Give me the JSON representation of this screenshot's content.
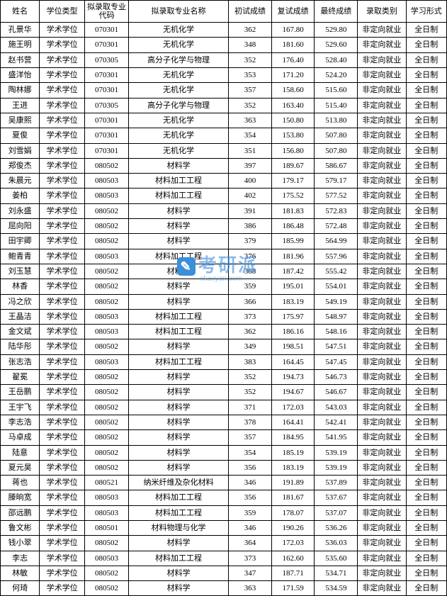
{
  "watermark": {
    "text": "考研派",
    "sub": "okaoyan.com"
  },
  "columns": [
    "姓名",
    "学位类型",
    "拟录取专业\n代码",
    "拟录取专业名称",
    "初试成绩",
    "复试成绩",
    "最终成绩",
    "录取类别",
    "学习形式"
  ],
  "rows": [
    [
      "孔景华",
      "学术学位",
      "070301",
      "无机化学",
      "362",
      "167.80",
      "529.80",
      "非定向就业",
      "全日制"
    ],
    [
      "施王明",
      "学术学位",
      "070301",
      "无机化学",
      "348",
      "181.60",
      "529.60",
      "非定向就业",
      "全日制"
    ],
    [
      "赵书营",
      "学术学位",
      "070305",
      "高分子化学与物理",
      "352",
      "176.40",
      "528.40",
      "非定向就业",
      "全日制"
    ],
    [
      "盛洋怡",
      "学术学位",
      "070301",
      "无机化学",
      "353",
      "171.20",
      "524.20",
      "非定向就业",
      "全日制"
    ],
    [
      "陶林娜",
      "学术学位",
      "070301",
      "无机化学",
      "357",
      "158.60",
      "515.60",
      "非定向就业",
      "全日制"
    ],
    [
      "王进",
      "学术学位",
      "070305",
      "高分子化学与物理",
      "352",
      "163.40",
      "515.40",
      "非定向就业",
      "全日制"
    ],
    [
      "吴康熙",
      "学术学位",
      "070301",
      "无机化学",
      "363",
      "150.80",
      "513.80",
      "非定向就业",
      "全日制"
    ],
    [
      "夏俊",
      "学术学位",
      "070301",
      "无机化学",
      "354",
      "153.80",
      "507.80",
      "非定向就业",
      "全日制"
    ],
    [
      "刘雪娟",
      "学术学位",
      "070301",
      "无机化学",
      "351",
      "156.80",
      "507.80",
      "非定向就业",
      "全日制"
    ],
    [
      "郑俊杰",
      "学术学位",
      "080502",
      "材料学",
      "397",
      "189.67",
      "586.67",
      "非定向就业",
      "全日制"
    ],
    [
      "朱晨元",
      "学术学位",
      "080503",
      "材料加工工程",
      "400",
      "179.17",
      "579.17",
      "非定向就业",
      "全日制"
    ],
    [
      "姜柏",
      "学术学位",
      "080503",
      "材料加工工程",
      "402",
      "175.52",
      "577.52",
      "非定向就业",
      "全日制"
    ],
    [
      "刘永盛",
      "学术学位",
      "080502",
      "材料学",
      "391",
      "181.83",
      "572.83",
      "非定向就业",
      "全日制"
    ],
    [
      "屈向阳",
      "学术学位",
      "080502",
      "材料学",
      "386",
      "186.48",
      "572.48",
      "非定向就业",
      "全日制"
    ],
    [
      "田宇卿",
      "学术学位",
      "080502",
      "材料学",
      "379",
      "185.99",
      "564.99",
      "非定向就业",
      "全日制"
    ],
    [
      "鲍青青",
      "学术学位",
      "080503",
      "材料加工工程",
      "376",
      "181.96",
      "557.96",
      "非定向就业",
      "全日制"
    ],
    [
      "刘玉慧",
      "学术学位",
      "080502",
      "材料学",
      "368",
      "187.42",
      "555.42",
      "非定向就业",
      "全日制"
    ],
    [
      "林香",
      "学术学位",
      "080502",
      "材料学",
      "359",
      "195.01",
      "554.01",
      "非定向就业",
      "全日制"
    ],
    [
      "冯之欣",
      "学术学位",
      "080502",
      "材料学",
      "366",
      "183.19",
      "549.19",
      "非定向就业",
      "全日制"
    ],
    [
      "王晶洁",
      "学术学位",
      "080503",
      "材料加工工程",
      "373",
      "175.97",
      "548.97",
      "非定向就业",
      "全日制"
    ],
    [
      "金文斌",
      "学术学位",
      "080503",
      "材料加工工程",
      "362",
      "186.16",
      "548.16",
      "非定向就业",
      "全日制"
    ],
    [
      "陆华彤",
      "学术学位",
      "080502",
      "材料学",
      "349",
      "198.51",
      "547.51",
      "非定向就业",
      "全日制"
    ],
    [
      "张志浩",
      "学术学位",
      "080503",
      "材料加工工程",
      "383",
      "164.45",
      "547.45",
      "非定向就业",
      "全日制"
    ],
    [
      "翟冕",
      "学术学位",
      "080502",
      "材料学",
      "352",
      "194.73",
      "546.73",
      "非定向就业",
      "全日制"
    ],
    [
      "王岳鹏",
      "学术学位",
      "080502",
      "材料学",
      "352",
      "194.67",
      "546.67",
      "非定向就业",
      "全日制"
    ],
    [
      "王宇飞",
      "学术学位",
      "080502",
      "材料学",
      "371",
      "172.03",
      "543.03",
      "非定向就业",
      "全日制"
    ],
    [
      "李志浩",
      "学术学位",
      "080502",
      "材料学",
      "378",
      "164.41",
      "542.41",
      "非定向就业",
      "全日制"
    ],
    [
      "马卓成",
      "学术学位",
      "080502",
      "材料学",
      "357",
      "184.95",
      "541.95",
      "非定向就业",
      "全日制"
    ],
    [
      "陆意",
      "学术学位",
      "080502",
      "材料学",
      "354",
      "185.19",
      "539.19",
      "非定向就业",
      "全日制"
    ],
    [
      "夏元昊",
      "学术学位",
      "080502",
      "材料学",
      "356",
      "183.19",
      "539.19",
      "非定向就业",
      "全日制"
    ],
    [
      "蒋也",
      "学术学位",
      "080521",
      "纳米纤维及杂化材料",
      "346",
      "191.89",
      "537.89",
      "非定向就业",
      "全日制"
    ],
    [
      "滕晌宽",
      "学术学位",
      "080503",
      "材料加工工程",
      "356",
      "181.67",
      "537.67",
      "非定向就业",
      "全日制"
    ],
    [
      "邵远鹏",
      "学术学位",
      "080503",
      "材料加工工程",
      "359",
      "178.07",
      "537.07",
      "非定向就业",
      "全日制"
    ],
    [
      "鲁文彬",
      "学术学位",
      "080501",
      "材料物理与化学",
      "346",
      "190.26",
      "536.26",
      "非定向就业",
      "全日制"
    ],
    [
      "钱小翠",
      "学术学位",
      "080502",
      "材料学",
      "364",
      "172.03",
      "536.03",
      "非定向就业",
      "全日制"
    ],
    [
      "李志",
      "学术学位",
      "080503",
      "材料加工工程",
      "373",
      "162.60",
      "535.60",
      "非定向就业",
      "全日制"
    ],
    [
      "林敏",
      "学术学位",
      "080502",
      "材料学",
      "347",
      "187.71",
      "534.71",
      "非定向就业",
      "全日制"
    ],
    [
      "何琦",
      "学术学位",
      "080502",
      "材料学",
      "363",
      "171.59",
      "534.59",
      "非定向就业",
      "全日制"
    ]
  ]
}
